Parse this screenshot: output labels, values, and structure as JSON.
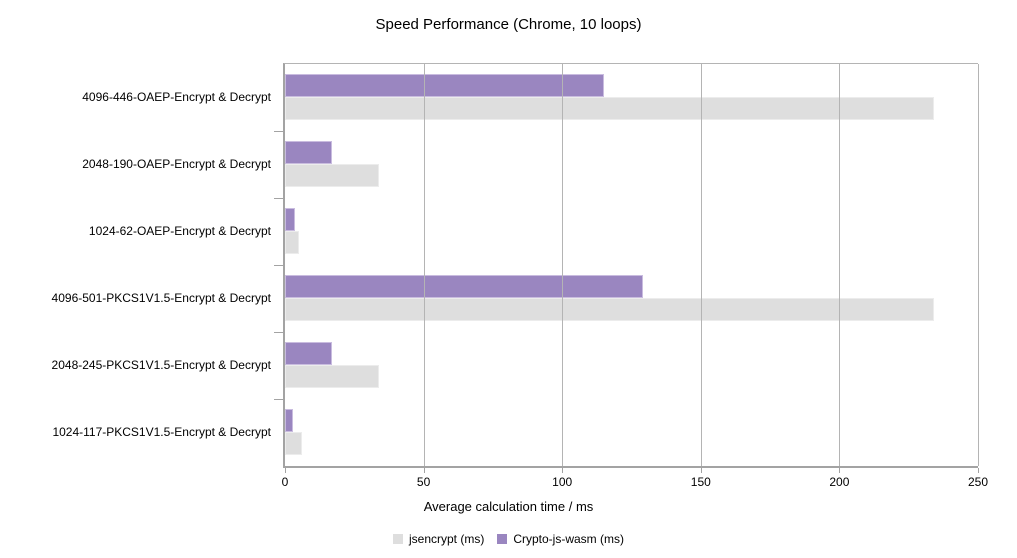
{
  "chart_data": {
    "type": "bar",
    "orientation": "horizontal",
    "title": "Speed Performance (Chrome, 10 loops)",
    "xlabel": "Average calculation time / ms",
    "ylabel": "",
    "xlim": [
      0,
      250
    ],
    "xticks": [
      0,
      50,
      100,
      150,
      200,
      250
    ],
    "grid": "vertical-gridlines",
    "legend_position": "bottom-center",
    "categories": [
      "4096-446-OAEP-Encrypt & Decrypt",
      "2048-190-OAEP-Encrypt & Decrypt",
      "1024-62-OAEP-Encrypt & Decrypt",
      "4096-501-PKCS1V1.5-Encrypt & Decrypt",
      "2048-245-PKCS1V1.5-Encrypt & Decrypt",
      "1024-117-PKCS1V1.5-Encrypt & Decrypt"
    ],
    "series": [
      {
        "name": "jsencrypt (ms)",
        "color": "#dedede",
        "border": "#ececec",
        "values": [
          234,
          34,
          5,
          234,
          34,
          6
        ]
      },
      {
        "name": "Crypto-js-wasm (ms)",
        "color": "#9a86c0",
        "border": "#c9bcdf",
        "values": [
          115,
          17,
          3.5,
          129,
          17,
          3
        ]
      }
    ]
  },
  "colors": {
    "background": "#ffffff",
    "gridline": "#b4b4b4",
    "axis": "#a3a3a3",
    "text": "#000000"
  }
}
